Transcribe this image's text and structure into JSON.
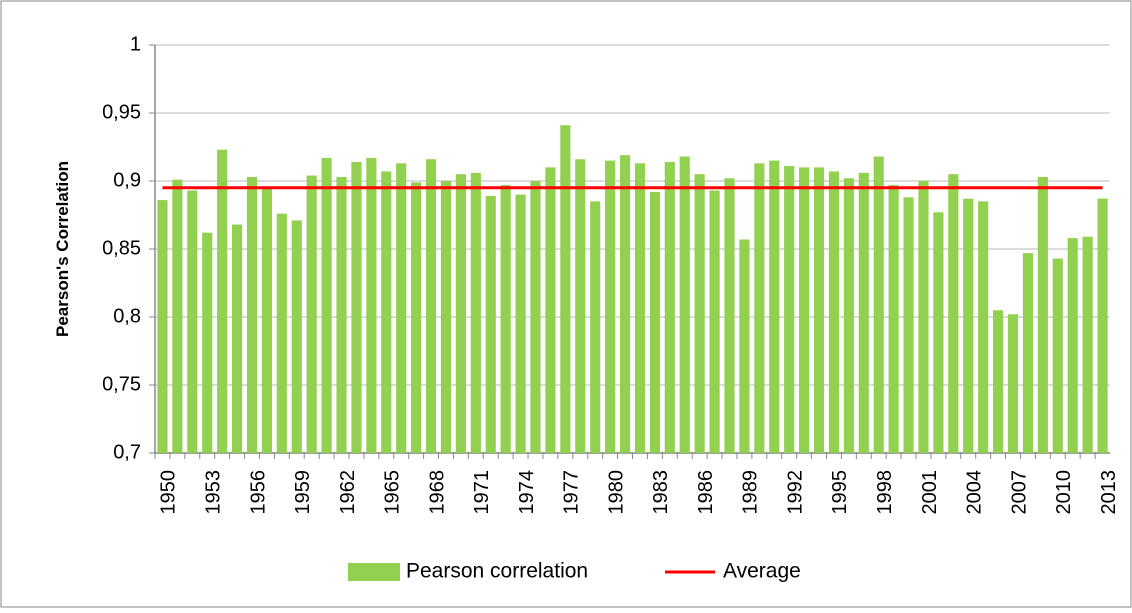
{
  "chart_data": {
    "type": "bar",
    "y_label": "Pearson's Correlation",
    "categories": [
      "1950",
      null,
      null,
      "1953",
      null,
      null,
      "1956",
      null,
      null,
      "1959",
      null,
      null,
      "1962",
      null,
      null,
      "1965",
      null,
      null,
      "1968",
      null,
      null,
      "1971",
      null,
      null,
      "1974",
      null,
      null,
      "1977",
      null,
      null,
      "1980",
      null,
      null,
      "1983",
      null,
      null,
      "1986",
      null,
      null,
      "1989",
      null,
      null,
      "1992",
      null,
      null,
      "1995",
      null,
      null,
      "1998",
      null,
      null,
      "2001",
      null,
      null,
      "2004",
      null,
      null,
      "2007",
      null,
      null,
      "2010",
      null,
      null,
      "2013"
    ],
    "series": [
      {
        "name": "Pearson correlation",
        "color": "#92d050",
        "values": [
          0.886,
          0.901,
          0.893,
          0.862,
          0.923,
          0.868,
          0.903,
          0.895,
          0.876,
          0.871,
          0.904,
          0.917,
          0.903,
          0.914,
          0.917,
          0.907,
          0.913,
          0.899,
          0.916,
          0.9,
          0.905,
          0.906,
          0.889,
          0.897,
          0.89,
          0.9,
          0.91,
          0.941,
          0.916,
          0.885,
          0.915,
          0.919,
          0.913,
          0.892,
          0.914,
          0.918,
          0.905,
          0.893,
          0.902,
          0.857,
          0.913,
          0.915,
          0.911,
          0.91,
          0.91,
          0.907,
          0.902,
          0.906,
          0.918,
          0.897,
          0.888,
          0.9,
          0.877,
          0.905,
          0.887,
          0.885,
          0.805,
          0.802,
          0.847,
          0.903,
          0.843,
          0.858,
          0.859,
          0.887
        ]
      },
      {
        "name": "Average",
        "color": "#ff0000",
        "type": "line",
        "value": 0.895
      }
    ],
    "ylim": [
      0.7,
      1
    ],
    "yticks": [
      {
        "value": 0.7,
        "label": "0,7"
      },
      {
        "value": 0.75,
        "label": "0,75"
      },
      {
        "value": 0.8,
        "label": "0,8"
      },
      {
        "value": 0.85,
        "label": "0,85"
      },
      {
        "value": 0.9,
        "label": "0,9"
      },
      {
        "value": 0.95,
        "label": "0,95"
      },
      {
        "value": 1,
        "label": "1"
      }
    ],
    "grid": true,
    "legend": "bottom"
  }
}
